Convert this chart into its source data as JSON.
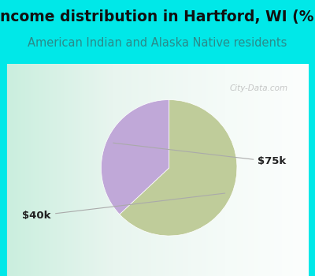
{
  "title": "Income distribution in Hartford, WI (%)",
  "subtitle": "American Indian and Alaska Native residents",
  "title_fontsize": 13.5,
  "subtitle_fontsize": 10.5,
  "title_color": "#111111",
  "subtitle_color": "#2a8a8a",
  "background_color": "#00e8e8",
  "slices": [
    0.63,
    0.37
  ],
  "slice_colors": [
    "#bfcc9a",
    "#c0a8d8"
  ],
  "watermark": "City-Data.com",
  "start_angle": 90,
  "label_40k": "$40k",
  "label_75k": "$75k",
  "label_fontsize": 9.5,
  "label_color": "#222222"
}
